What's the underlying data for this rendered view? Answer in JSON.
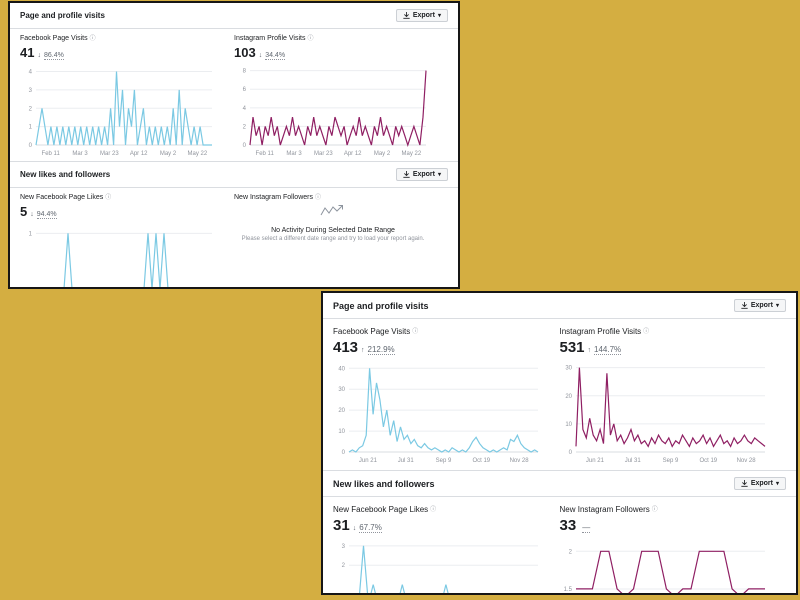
{
  "colors": {
    "background": "#d4ae41",
    "facebook_line": "#7bc9e3",
    "instagram_line": "#8f1f63",
    "text_primary": "#1c1e21",
    "text_secondary": "#90949c"
  },
  "panels": [
    {
      "sections": [
        {
          "title": "Page and profile visits",
          "export_label": "Export"
        },
        {
          "title": "New likes and followers",
          "export_label": "Export"
        }
      ],
      "metrics": {
        "fb_visits": {
          "title": "Facebook Page Visits",
          "value": "41",
          "arrow": "↓",
          "delta": "86.4%"
        },
        "ig_visits": {
          "title": "Instagram Profile Visits",
          "value": "103",
          "arrow": "↓",
          "delta": "34.4%"
        },
        "fb_likes": {
          "title": "New Facebook Page Likes",
          "value": "5",
          "arrow": "↓",
          "delta": "94.4%"
        },
        "ig_followers": {
          "title": "New Instagram Followers",
          "empty_title": "No Activity During Selected Date Range",
          "empty_subtitle": "Please select a different date range and try to load your report again."
        }
      }
    },
    {
      "sections": [
        {
          "title": "Page and profile visits",
          "export_label": "Export"
        },
        {
          "title": "New likes and followers",
          "export_label": "Export"
        }
      ],
      "metrics": {
        "fb_visits": {
          "title": "Facebook Page Visits",
          "value": "413",
          "arrow": "↑",
          "delta": "212.9%"
        },
        "ig_visits": {
          "title": "Instagram Profile Visits",
          "value": "531",
          "arrow": "↑",
          "delta": "144.7%"
        },
        "fb_likes": {
          "title": "New Facebook Page Likes",
          "value": "31",
          "arrow": "↓",
          "delta": "67.7%"
        },
        "ig_followers": {
          "title": "New Instagram Followers",
          "value": "33",
          "arrow": "",
          "delta": "—"
        }
      }
    }
  ],
  "chart_data": [
    {
      "type": "line",
      "title": "Facebook Page Visits (Feb 11 – May 22)",
      "color": "#7bc9e3",
      "ylim": [
        0,
        4.3
      ],
      "yticks": [
        0,
        1,
        2,
        3,
        4
      ],
      "xlabels": [
        "Feb 11",
        "Mar 3",
        "Mar 23",
        "Apr 12",
        "May 2",
        "May 22"
      ],
      "values": [
        0,
        1,
        2,
        1,
        0,
        1,
        0,
        1,
        0,
        1,
        0,
        1,
        0,
        1,
        0,
        1,
        0,
        1,
        0,
        1,
        0,
        1,
        0,
        1,
        0,
        2,
        0,
        4,
        1,
        3,
        0,
        2,
        1,
        3,
        0,
        1,
        2,
        0,
        1,
        0,
        1,
        0,
        1,
        0,
        1,
        0,
        2,
        0,
        3,
        0,
        2,
        1,
        0,
        1,
        0,
        1,
        0,
        0,
        0,
        0
      ]
    },
    {
      "type": "line",
      "title": "Instagram Profile Visits (Feb 11 – May 22)",
      "color": "#8f1f63",
      "ylim": [
        0,
        8.5
      ],
      "yticks": [
        0,
        2,
        4,
        6,
        8
      ],
      "xlabels": [
        "Feb 11",
        "Mar 3",
        "Mar 23",
        "Apr 12",
        "May 2",
        "May 22"
      ],
      "values": [
        0,
        3,
        1,
        2,
        0,
        2,
        1,
        3,
        1,
        2,
        0,
        1,
        2,
        1,
        3,
        1,
        2,
        1,
        0,
        2,
        1,
        3,
        1,
        2,
        1,
        0,
        2,
        1,
        3,
        2,
        1,
        2,
        0,
        1,
        2,
        1,
        3,
        1,
        2,
        1,
        0,
        2,
        1,
        3,
        1,
        2,
        1,
        0,
        2,
        1,
        2,
        1,
        0,
        1,
        2,
        1,
        0,
        3,
        8
      ]
    },
    {
      "type": "line",
      "title": "New Facebook Page Likes (clipped)",
      "color": "#7bc9e3",
      "ylim": [
        0,
        1.15
      ],
      "yticks": [
        1
      ],
      "xlabels": [],
      "values": [
        0,
        0,
        0,
        0,
        0,
        0,
        0,
        0,
        1,
        0,
        0,
        0,
        0,
        0,
        0,
        0,
        0,
        0,
        0,
        0,
        0,
        0,
        0,
        0,
        0,
        0,
        0,
        0,
        1,
        0,
        1,
        0,
        1,
        0,
        0,
        0,
        0,
        0,
        0,
        0,
        0,
        0,
        0,
        0,
        0
      ]
    },
    {
      "type": "line",
      "title": "Facebook Page Visits (Jun 21 – Nov 28)",
      "color": "#7bc9e3",
      "ylim": [
        0,
        43
      ],
      "yticks": [
        0,
        10,
        20,
        30,
        40
      ],
      "xlabels": [
        "Jun 21",
        "Jul 31",
        "Sep 9",
        "Oct 19",
        "Nov 28"
      ],
      "values": [
        0,
        1,
        0,
        2,
        3,
        8,
        40,
        18,
        33,
        25,
        12,
        20,
        8,
        15,
        5,
        12,
        6,
        8,
        4,
        6,
        3,
        2,
        4,
        2,
        1,
        2,
        1,
        0,
        1,
        0,
        2,
        1,
        0,
        1,
        0,
        2,
        5,
        7,
        4,
        2,
        1,
        0,
        1,
        0,
        1,
        2,
        1,
        6,
        5,
        8,
        4,
        2,
        1,
        0,
        1,
        0
      ]
    },
    {
      "type": "line",
      "title": "Instagram Profile Visits (Jun 21 – Nov 28)",
      "color": "#8f1f63",
      "ylim": [
        0,
        32
      ],
      "yticks": [
        0,
        10,
        20,
        30
      ],
      "xlabels": [
        "Jun 21",
        "Jul 31",
        "Sep 9",
        "Oct 19",
        "Nov 28"
      ],
      "values": [
        2,
        30,
        8,
        5,
        12,
        6,
        4,
        8,
        3,
        28,
        6,
        10,
        4,
        6,
        3,
        5,
        8,
        4,
        6,
        3,
        4,
        2,
        5,
        3,
        6,
        4,
        3,
        5,
        2,
        4,
        3,
        6,
        4,
        2,
        5,
        3,
        4,
        6,
        3,
        5,
        2,
        4,
        6,
        3,
        4,
        2,
        5,
        3,
        4,
        6,
        4,
        3,
        5,
        4,
        3,
        2
      ]
    },
    {
      "type": "line",
      "title": "New Facebook Page Likes (clipped)",
      "color": "#7bc9e3",
      "ylim": [
        0,
        3.3
      ],
      "yticks": [
        2,
        3
      ],
      "xlabels": [],
      "values": [
        0,
        0,
        0,
        3,
        0,
        1,
        0,
        0,
        0,
        0,
        0,
        1,
        0,
        0,
        0,
        0,
        0,
        0,
        0,
        0,
        1,
        0,
        0,
        0,
        0,
        0,
        0,
        0,
        0,
        0,
        0,
        0,
        0,
        0,
        0,
        0,
        0,
        0,
        0,
        0
      ]
    },
    {
      "type": "line",
      "title": "New Instagram Followers (clipped)",
      "color": "#8f1f63",
      "ylim": [
        1.3,
        2.15
      ],
      "yticks": [
        1.5,
        2
      ],
      "xlabels": [],
      "values": [
        1.5,
        1.5,
        1.5,
        2,
        2,
        1.5,
        1.4,
        1.5,
        2,
        2,
        2,
        1.5,
        1.4,
        1.5,
        1.5,
        2,
        2,
        2,
        2,
        1.5,
        1.4,
        1.5,
        1.5,
        1.5
      ]
    }
  ]
}
